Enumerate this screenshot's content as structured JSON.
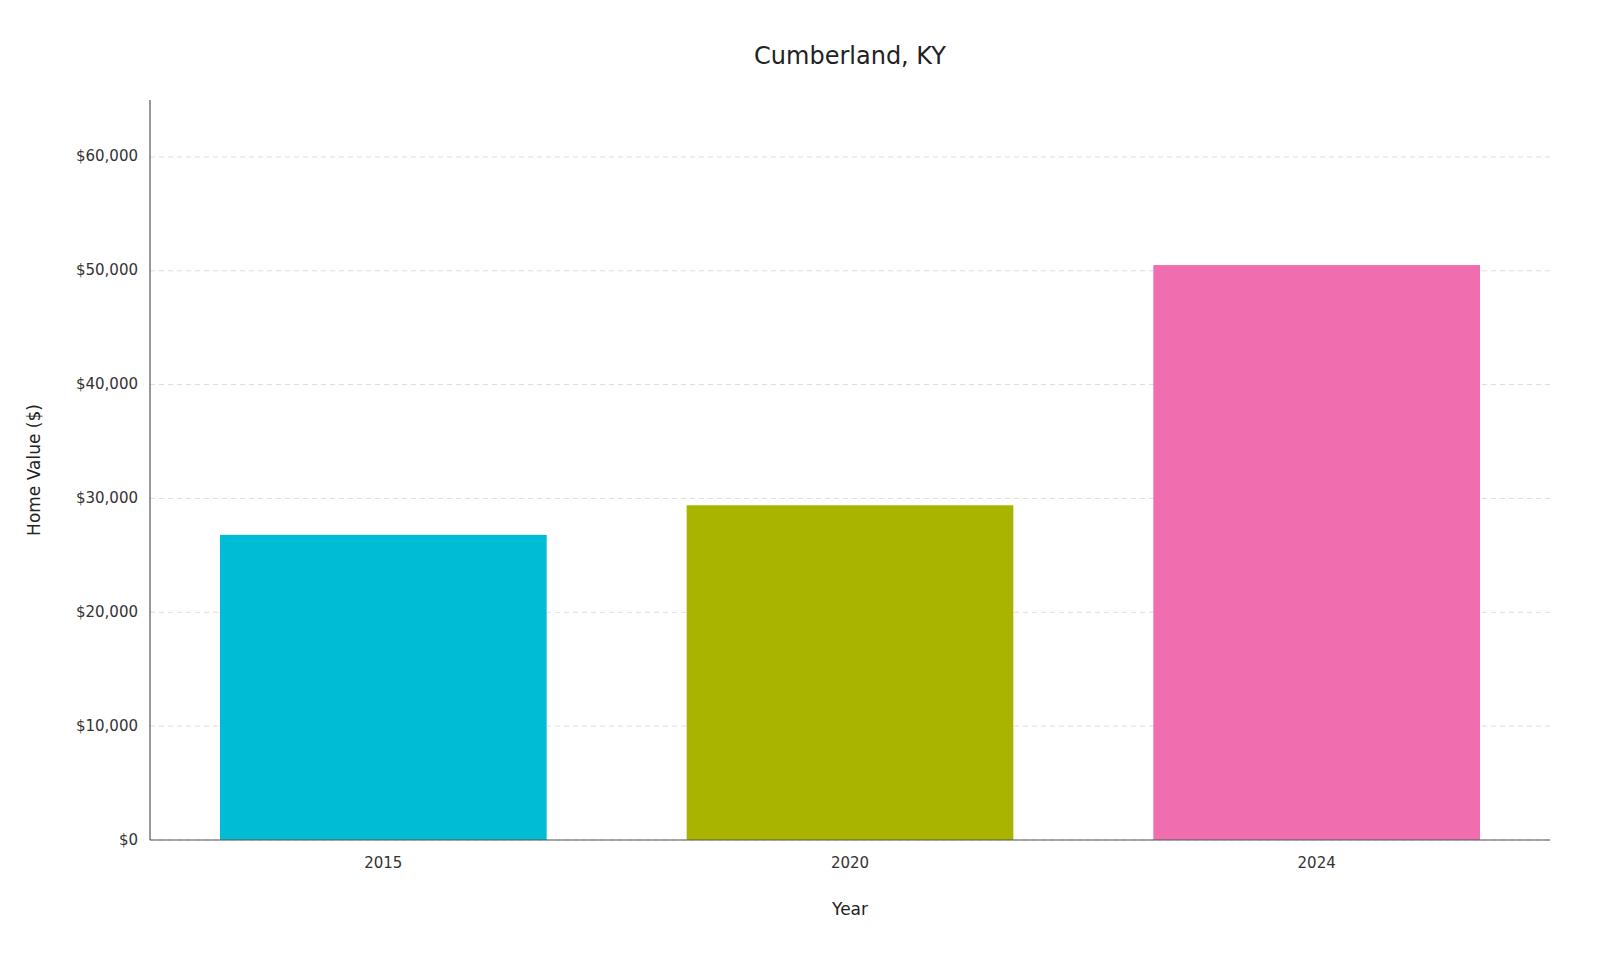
{
  "chart_data": {
    "type": "bar",
    "title": "Cumberland, KY",
    "xlabel": "Year",
    "ylabel": "Home Value ($)",
    "categories": [
      "2015",
      "2020",
      "2024"
    ],
    "values": [
      26800,
      29400,
      50500
    ],
    "colors": [
      "#00BCD4",
      "#A8B400",
      "#F06EB0"
    ],
    "ylim": [
      0,
      65000
    ],
    "yticks": [
      {
        "value": 0,
        "label": "$0"
      },
      {
        "value": 10000,
        "label": "$10,000"
      },
      {
        "value": 20000,
        "label": "$20,000"
      },
      {
        "value": 30000,
        "label": "$30,000"
      },
      {
        "value": 40000,
        "label": "$40,000"
      },
      {
        "value": 50000,
        "label": "$50,000"
      },
      {
        "value": 60000,
        "label": "$60,000"
      }
    ],
    "grid": true
  }
}
